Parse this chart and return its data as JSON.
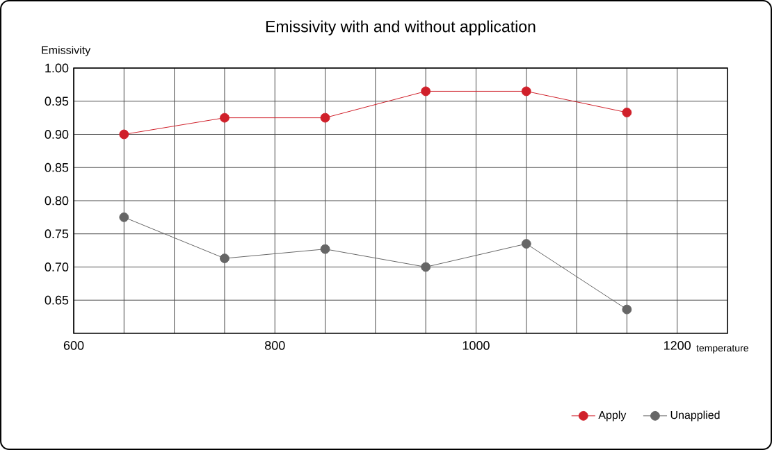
{
  "chart_data": {
    "type": "line",
    "title": "Emissivity with and without application",
    "xlabel": "temperature",
    "ylabel": "Emissivity",
    "x": [
      650,
      750,
      850,
      950,
      1050,
      1150
    ],
    "series": [
      {
        "name": "Apply",
        "color": "#d0202a",
        "values": [
          0.9,
          0.925,
          0.925,
          0.965,
          0.965,
          0.933
        ]
      },
      {
        "name": "Unapplied",
        "color": "#666666",
        "values": [
          0.775,
          0.713,
          0.727,
          0.7,
          0.735,
          0.636
        ]
      }
    ],
    "xlim": [
      600,
      1250
    ],
    "xticks": [
      600,
      {
        "value": 650,
        "label": null
      },
      {
        "value": 700,
        "label": null
      },
      {
        "value": 750,
        "label": null
      },
      800,
      {
        "value": 850,
        "label": null
      },
      {
        "value": 900,
        "label": null
      },
      {
        "value": 950,
        "label": null
      },
      1000,
      {
        "value": 1050,
        "label": null
      },
      {
        "value": 1100,
        "label": null
      },
      {
        "value": 1150,
        "label": null
      },
      1200
    ],
    "ylim": [
      0.6,
      1.0
    ],
    "yticks": [
      {
        "value": 0.65,
        "label": "0.65"
      },
      {
        "value": 0.7,
        "label": "0.70"
      },
      {
        "value": 0.75,
        "label": "0.75"
      },
      {
        "value": 0.8,
        "label": "0.80"
      },
      {
        "value": 0.85,
        "label": "0.85"
      },
      {
        "value": 0.9,
        "label": "0.90"
      },
      {
        "value": 0.95,
        "label": "0.95"
      },
      {
        "value": 1.0,
        "label": "1.00"
      }
    ],
    "grid": true,
    "legend": "bottom right",
    "marker": "circle",
    "line_style": "solid"
  }
}
